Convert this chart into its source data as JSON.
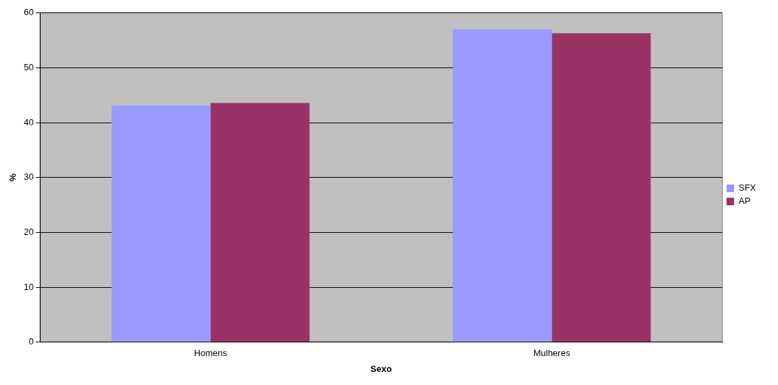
{
  "chart_data": {
    "type": "bar",
    "xlabel": "Sexo",
    "ylabel": "%",
    "categories": [
      "Homens",
      "Mulheres"
    ],
    "series": [
      {
        "name": "SFX",
        "color": "#9999ff",
        "values": [
          43.1,
          57.0
        ]
      },
      {
        "name": "AP",
        "color": "#993366",
        "values": [
          43.6,
          56.3
        ]
      }
    ],
    "ylim": [
      0,
      60
    ],
    "yticks": [
      0,
      10,
      20,
      30,
      40,
      50,
      60
    ],
    "grid": "y",
    "legend": "right"
  }
}
